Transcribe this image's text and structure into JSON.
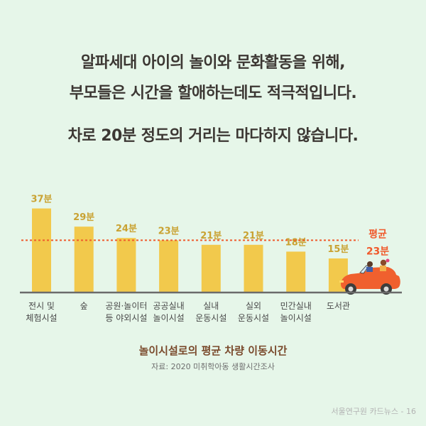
{
  "headline": {
    "line1": "알파세대 아이의 놀이와 문화활동을 위해,",
    "line2": "부모들은 시간을 할애하는데도 적극적입니다.",
    "line3": "차로 20분 정도의 거리는 마다하지 않습니다."
  },
  "chart_data": {
    "type": "bar",
    "title": "놀이시설로의 평균 차량 이동시간",
    "source": "자료: 2020 미취학아동 생활시간조사",
    "categories": [
      [
        "전시 및",
        "체험시설"
      ],
      [
        "숲"
      ],
      [
        "공원·놀이터",
        "등 야외시설"
      ],
      [
        "공공실내",
        "놀이시설"
      ],
      [
        "실내",
        "운동시설"
      ],
      [
        "실외",
        "운동시설"
      ],
      [
        "민간실내",
        "놀이시설"
      ],
      [
        "도서관"
      ]
    ],
    "values": [
      37,
      29,
      24,
      23,
      21,
      21,
      18,
      15
    ],
    "value_labels": [
      "37분",
      "29분",
      "24분",
      "23분",
      "21분",
      "21분",
      "18분",
      "15분"
    ],
    "unit": "분",
    "average": 23,
    "average_label": [
      "평균",
      "23분"
    ],
    "colors": {
      "bar": "#f2c94c",
      "value_label": "#c9a232",
      "average": "#f05a2c",
      "baseline": "#6b6b6b"
    }
  },
  "footer": "서울연구원 카드뉴스 - 16"
}
